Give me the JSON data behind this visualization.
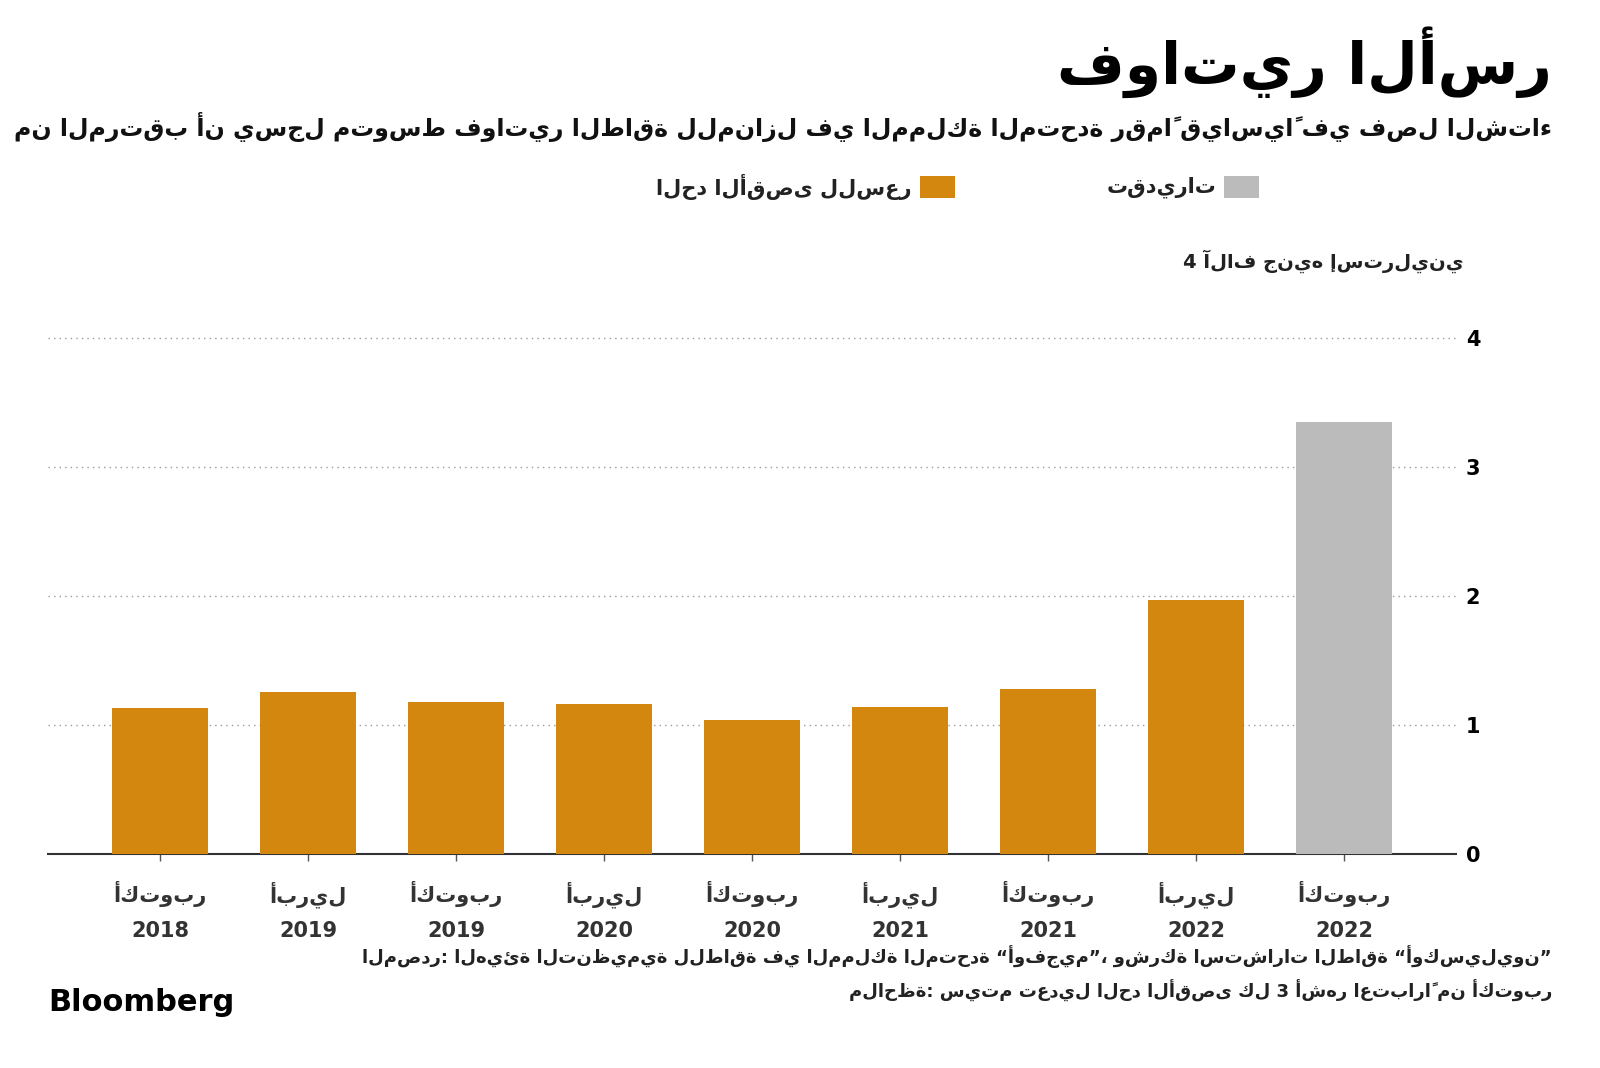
{
  "title": "فواتير الأسر",
  "subtitle": "من المرتقب أن يسجل متوسط فواتير الطاقة للمنازل في المملكة المتحدة رقماً قياسياً في فصل الشتاء",
  "ylabel": "4 آلاف جنيه إسترليني",
  "legend_orange": "الحد الأقصى للسعر",
  "legend_gray": "تقديرات",
  "source_text": "المصدر: الهيئة التنظيمية للطاقة في المملكة المتحدة “أوفجيم”، وشركة استشارات الطاقة “أوكسيليون”",
  "note_text": "ملاحظة: سيتم تعديل الحد الأقصى كل 3 أشهر اعتباراً من أكتوبر",
  "bloomberg_text": "Bloomberg",
  "cat_lines": [
    [
      "أكتوبر",
      "2018"
    ],
    [
      "أبريل",
      "2019"
    ],
    [
      "أكتوبر",
      "2019"
    ],
    [
      "أبريل",
      "2020"
    ],
    [
      "أكتوبر",
      "2020"
    ],
    [
      "أبريل",
      "2021"
    ],
    [
      "أكتوبر",
      "2021"
    ],
    [
      "أبريل",
      "2022"
    ],
    [
      "أكتوبر",
      "2022"
    ]
  ],
  "values": [
    1.137,
    1.254,
    1.179,
    1.162,
    1.042,
    1.138,
    1.277,
    1.971,
    3.35
  ],
  "colors": [
    "#D4870E",
    "#D4870E",
    "#D4870E",
    "#D4870E",
    "#D4870E",
    "#D4870E",
    "#D4870E",
    "#D4870E",
    "#BBBBBB"
  ],
  "ylim": [
    0,
    4.3
  ],
  "yticks": [
    0,
    1,
    2,
    3,
    4
  ],
  "background_color": "#FFFFFF",
  "grid_color": "#AAAAAA",
  "title_fontsize": 42,
  "subtitle_fontsize": 17,
  "legend_fontsize": 15,
  "tick_fontsize": 15,
  "source_fontsize": 13,
  "bar_width": 0.65
}
